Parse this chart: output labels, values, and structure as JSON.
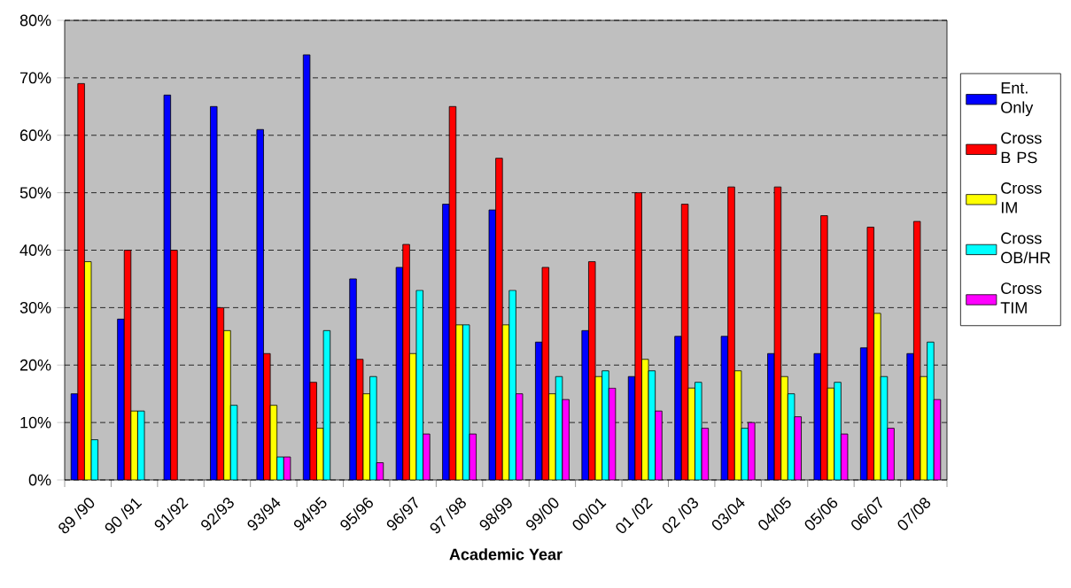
{
  "chart_data": {
    "type": "bar",
    "xlabel": "Academic Year",
    "categories": [
      "89 /90",
      "90 /91",
      "91/92",
      "92/93",
      "93/94",
      "94/95",
      "95/96",
      "96/97",
      "97 /98",
      "98/99",
      "99/00",
      "00/01",
      "01 /02",
      "02 /03",
      "03/04",
      "04/05",
      "05/06",
      "06/07",
      "07/08"
    ],
    "series": [
      {
        "name": "Ent. Only",
        "color": "#0000ff",
        "values": [
          15,
          28,
          67,
          65,
          61,
          74,
          35,
          37,
          48,
          47,
          24,
          26,
          18,
          25,
          25,
          22,
          22,
          23,
          22
        ]
      },
      {
        "name": "Cross B PS",
        "color": "#ff0000",
        "values": [
          69,
          40,
          40,
          30,
          22,
          17,
          21,
          41,
          65,
          56,
          37,
          38,
          50,
          48,
          51,
          51,
          46,
          44,
          45
        ]
      },
      {
        "name": "Cross IM",
        "color": "#ffff00",
        "values": [
          38,
          12,
          null,
          26,
          13,
          9,
          15,
          22,
          27,
          27,
          15,
          18,
          21,
          16,
          19,
          18,
          16,
          29,
          18
        ]
      },
      {
        "name": "Cross OB/HR",
        "color": "#00ffff",
        "values": [
          7,
          12,
          null,
          13,
          4,
          26,
          18,
          33,
          27,
          33,
          18,
          19,
          19,
          17,
          9,
          15,
          17,
          18,
          24
        ]
      },
      {
        "name": "Cross TIM",
        "color": "#ff00ff",
        "values": [
          null,
          null,
          null,
          null,
          4,
          null,
          3,
          8,
          8,
          15,
          14,
          16,
          12,
          9,
          10,
          11,
          8,
          9,
          14
        ]
      }
    ],
    "ylim": [
      0,
      80
    ],
    "yticks": [
      {
        "value": 0,
        "label": "0%"
      },
      {
        "value": 10,
        "label": "10%"
      },
      {
        "value": 20,
        "label": "20%"
      },
      {
        "value": 30,
        "label": "30%"
      },
      {
        "value": 40,
        "label": "40%"
      },
      {
        "value": 50,
        "label": "50%"
      },
      {
        "value": 60,
        "label": "60%"
      },
      {
        "value": 70,
        "label": "70%"
      },
      {
        "value": 80,
        "label": "80%"
      }
    ],
    "grid": "y",
    "legend": "right"
  }
}
